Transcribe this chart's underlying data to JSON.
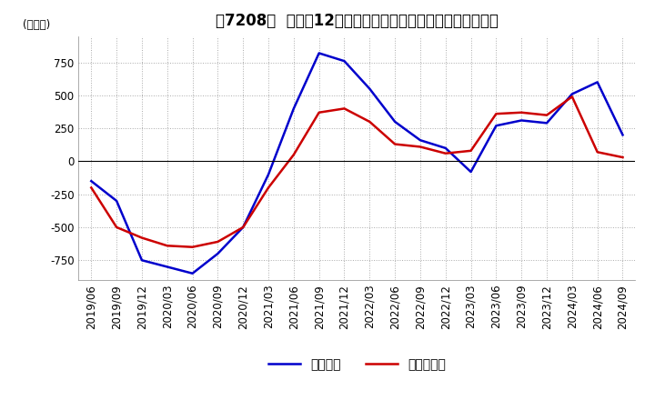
{
  "title": "［7208］  利益の12か月移動合計の対前年同期増減額の推移",
  "ylabel": "(百万円)",
  "ylim": [
    -900,
    950
  ],
  "yticks": [
    -750,
    -500,
    -250,
    0,
    250,
    500,
    750
  ],
  "line1_label": "経常利益",
  "line1_color": "#0000cc",
  "line2_label": "当期純利益",
  "line2_color": "#cc0000",
  "dates": [
    "2019/06",
    "2019/09",
    "2019/12",
    "2020/03",
    "2020/06",
    "2020/09",
    "2020/12",
    "2021/03",
    "2021/06",
    "2021/09",
    "2021/12",
    "2022/03",
    "2022/06",
    "2022/09",
    "2022/12",
    "2023/03",
    "2023/06",
    "2023/09",
    "2023/12",
    "2024/03",
    "2024/06",
    "2024/09"
  ],
  "line1_values": [
    -150,
    -300,
    -750,
    -800,
    -850,
    -700,
    -500,
    -100,
    400,
    820,
    760,
    550,
    300,
    160,
    100,
    -80,
    270,
    310,
    290,
    510,
    600,
    200
  ],
  "line2_values": [
    -200,
    -500,
    -580,
    -640,
    -650,
    -610,
    -500,
    -200,
    50,
    370,
    400,
    300,
    130,
    110,
    60,
    80,
    360,
    370,
    350,
    490,
    70,
    30
  ],
  "background_color": "#ffffff",
  "grid_color": "#aaaaaa",
  "title_fontsize": 12,
  "axis_fontsize": 8.5,
  "legend_fontsize": 10
}
